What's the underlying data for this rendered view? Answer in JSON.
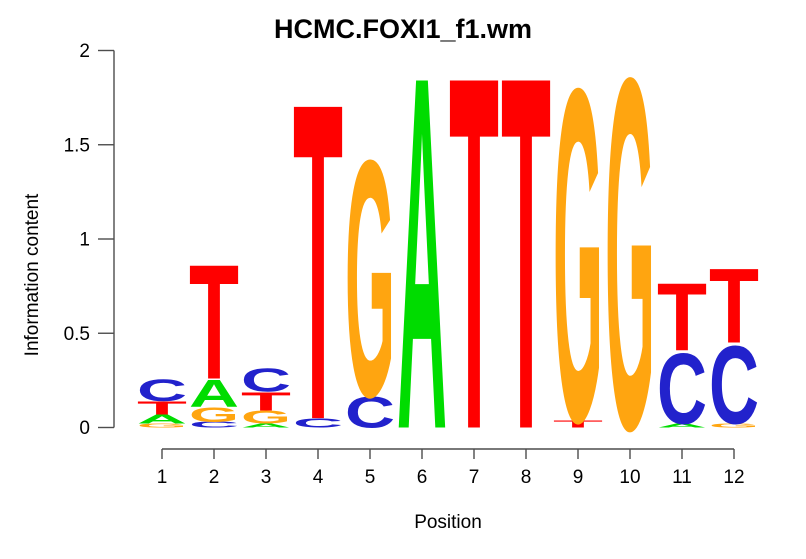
{
  "figure": {
    "background_color": "#ffffff",
    "axis_line_color": "#4d4d4d",
    "text_color": "#000000"
  },
  "chart_data": {
    "type": "sequence_logo",
    "title": "HCMC.FOXI1_f1.wm",
    "xlabel": "Position",
    "ylabel": "Information content",
    "ylim": [
      0,
      2
    ],
    "y_ticks": [
      "0",
      "0.5",
      "1",
      "1.5",
      "2"
    ],
    "y_tick_values": [
      0,
      0.5,
      1,
      1.5,
      2
    ],
    "x_tick_labels": [
      "1",
      "2",
      "3",
      "4",
      "5",
      "6",
      "7",
      "8",
      "9",
      "10",
      "11",
      "12"
    ],
    "grid": "off",
    "legend": "none",
    "base_colors": {
      "A": "#00dc00",
      "C": "#2222cc",
      "G": "#ffa510",
      "T": "#ff0000"
    },
    "positions": [
      {
        "position": 1,
        "stack": [
          {
            "base": "G",
            "bits": 0.02
          },
          {
            "base": "A",
            "bits": 0.05
          },
          {
            "base": "T",
            "bits": 0.07
          },
          {
            "base": "C",
            "bits": 0.12
          }
        ]
      },
      {
        "position": 2,
        "stack": [
          {
            "base": "C",
            "bits": 0.03
          },
          {
            "base": "G",
            "bits": 0.08
          },
          {
            "base": "A",
            "bits": 0.15
          },
          {
            "base": "T",
            "bits": 0.63
          }
        ]
      },
      {
        "position": 3,
        "stack": [
          {
            "base": "A",
            "bits": 0.02
          },
          {
            "base": "G",
            "bits": 0.07
          },
          {
            "base": "T",
            "bits": 0.1
          },
          {
            "base": "C",
            "bits": 0.13
          }
        ]
      },
      {
        "position": 4,
        "stack": [
          {
            "base": "C",
            "bits": 0.05
          },
          {
            "base": "T",
            "bits": 1.74
          }
        ]
      },
      {
        "position": 5,
        "stack": [
          {
            "base": "C",
            "bits": 0.17
          },
          {
            "base": "G",
            "bits": 1.3
          }
        ]
      },
      {
        "position": 6,
        "stack": [
          {
            "base": "A",
            "bits": 1.94
          }
        ]
      },
      {
        "position": 7,
        "stack": [
          {
            "base": "T",
            "bits": 1.94
          }
        ]
      },
      {
        "position": 8,
        "stack": [
          {
            "base": "T",
            "bits": 1.94
          }
        ]
      },
      {
        "position": 9,
        "stack": [
          {
            "base": "T",
            "bits": 0.04
          },
          {
            "base": "G",
            "bits": 1.83
          }
        ]
      },
      {
        "position": 10,
        "stack": [
          {
            "base": "G",
            "bits": 1.93
          }
        ]
      },
      {
        "position": 11,
        "stack": [
          {
            "base": "A",
            "bits": 0.02
          },
          {
            "base": "C",
            "bits": 0.39
          },
          {
            "base": "T",
            "bits": 0.37
          }
        ]
      },
      {
        "position": 12,
        "stack": [
          {
            "base": "G",
            "bits": 0.02
          },
          {
            "base": "C",
            "bits": 0.43
          },
          {
            "base": "T",
            "bits": 0.41
          }
        ]
      }
    ]
  }
}
